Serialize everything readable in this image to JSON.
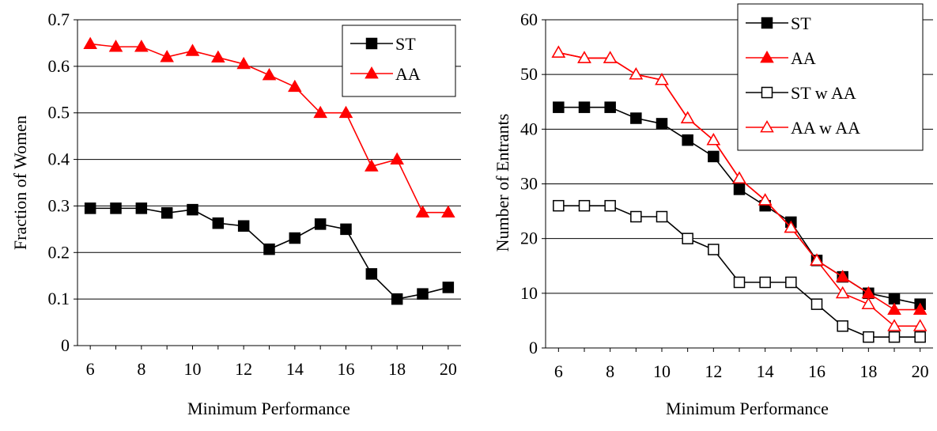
{
  "colors": {
    "st": "#000000",
    "aa": "#ff0000",
    "grid": "#000000",
    "background": "#ffffff"
  },
  "chart_data": [
    {
      "type": "line",
      "title": "",
      "xlabel": "Minimum Performance",
      "ylabel": "Fraction of Women",
      "xlim": [
        5.5,
        20.5
      ],
      "ylim": [
        0,
        0.7
      ],
      "xticks": [
        6,
        8,
        10,
        12,
        14,
        16,
        18,
        20
      ],
      "xtick_labels": [
        "6",
        "8",
        "10",
        "12",
        "14",
        "16",
        "18",
        "20"
      ],
      "yticks": [
        0,
        0.1,
        0.2,
        0.3,
        0.4,
        0.5,
        0.6,
        0.7
      ],
      "ytick_labels": [
        "0",
        "0.1",
        "0.2",
        "0.3",
        "0.4",
        "0.5",
        "0.6",
        "0.7"
      ],
      "grid": true,
      "legend_position": "top-right",
      "x": [
        6,
        7,
        8,
        9,
        10,
        11,
        12,
        13,
        14,
        15,
        16,
        17,
        18,
        19,
        20
      ],
      "series": [
        {
          "name": "ST",
          "color": "#000000",
          "marker": "square-filled",
          "values": [
            0.295,
            0.295,
            0.295,
            0.285,
            0.292,
            0.263,
            0.257,
            0.207,
            0.231,
            0.261,
            0.25,
            0.154,
            0.1,
            0.111,
            0.125
          ]
        },
        {
          "name": "AA",
          "color": "#ff0000",
          "marker": "triangle-filled",
          "values": [
            0.648,
            0.642,
            0.642,
            0.62,
            0.633,
            0.619,
            0.605,
            0.581,
            0.556,
            0.5,
            0.5,
            0.385,
            0.4,
            0.286,
            0.286
          ]
        }
      ]
    },
    {
      "type": "line",
      "title": "",
      "xlabel": "Minimum Performance",
      "ylabel": "Number of Entrants",
      "xlim": [
        5.5,
        20.5
      ],
      "ylim": [
        0,
        60
      ],
      "xticks": [
        6,
        8,
        10,
        12,
        14,
        16,
        18,
        20
      ],
      "xtick_labels": [
        "6",
        "8",
        "10",
        "12",
        "14",
        "16",
        "18",
        "20"
      ],
      "yticks": [
        0,
        10,
        20,
        30,
        40,
        50,
        60
      ],
      "ytick_labels": [
        "0",
        "10",
        "20",
        "30",
        "40",
        "50",
        "60"
      ],
      "grid": true,
      "legend_position": "top-right",
      "x": [
        6,
        7,
        8,
        9,
        10,
        11,
        12,
        13,
        14,
        15,
        16,
        17,
        18,
        19,
        20
      ],
      "series": [
        {
          "name": "ST",
          "color": "#000000",
          "marker": "square-filled",
          "values": [
            44,
            44,
            44,
            42,
            41,
            38,
            35,
            29,
            26,
            23,
            16,
            13,
            10,
            9,
            8
          ]
        },
        {
          "name": "AA",
          "color": "#ff0000",
          "marker": "triangle-filled",
          "values": [
            54,
            53,
            53,
            50,
            49,
            42,
            38,
            31,
            27,
            22,
            16,
            13,
            10,
            7,
            7
          ]
        },
        {
          "name": "ST w AA",
          "color": "#000000",
          "marker": "square-open",
          "values": [
            26,
            26,
            26,
            24,
            24,
            20,
            18,
            12,
            12,
            12,
            8,
            4,
            2,
            2,
            2
          ]
        },
        {
          "name": "AA w AA",
          "color": "#ff0000",
          "marker": "triangle-open",
          "values": [
            54,
            53,
            53,
            50,
            49,
            42,
            38,
            31,
            27,
            22,
            16,
            10,
            8,
            4,
            4
          ]
        }
      ]
    }
  ]
}
